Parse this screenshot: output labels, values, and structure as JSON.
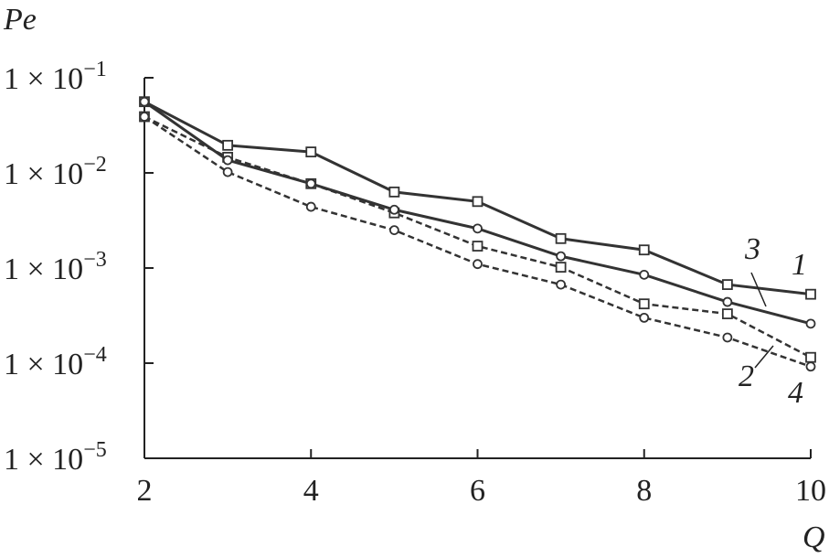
{
  "chart_data": {
    "type": "line",
    "x_label": "Q",
    "y_label": "Pe",
    "xlim": [
      2,
      10
    ],
    "xticks": [
      2,
      4,
      6,
      8,
      10
    ],
    "ylim": [
      1e-05,
      0.1
    ],
    "log_y": true,
    "yticks": [
      {
        "value": 0.1,
        "label": "1 × 10−1"
      },
      {
        "value": 0.01,
        "label": "1 × 10−2"
      },
      {
        "value": 0.001,
        "label": "1 × 10−3"
      },
      {
        "value": 0.0001,
        "label": "1 × 10−4"
      },
      {
        "value": 1e-05,
        "label": "1 × 10−5"
      }
    ],
    "x": [
      2,
      3,
      4,
      5,
      6,
      7,
      8,
      9,
      10
    ],
    "series": [
      {
        "name": "1",
        "color": "#333333",
        "dashed": false,
        "marker": "square",
        "values": [
          0.056,
          0.0195,
          0.0166,
          0.0063,
          0.005,
          0.00204,
          0.00155,
          0.00067,
          0.00053
        ]
      },
      {
        "name": "2",
        "color": "#333333",
        "dashed": true,
        "marker": "square",
        "values": [
          0.039,
          0.0146,
          0.0077,
          0.0038,
          0.0017,
          0.00102,
          0.00042,
          0.00033,
          0.000115
        ]
      },
      {
        "name": "3",
        "color": "#333333",
        "dashed": false,
        "marker": "circle",
        "values": [
          0.056,
          0.0136,
          0.0077,
          0.0041,
          0.0026,
          0.00133,
          0.00085,
          0.00044,
          0.00026
        ]
      },
      {
        "name": "4",
        "color": "#333333",
        "dashed": true,
        "marker": "circle",
        "values": [
          0.039,
          0.0102,
          0.0044,
          0.0025,
          0.0011,
          0.00067,
          0.0003,
          0.000186,
          9.2e-05
        ]
      }
    ]
  }
}
